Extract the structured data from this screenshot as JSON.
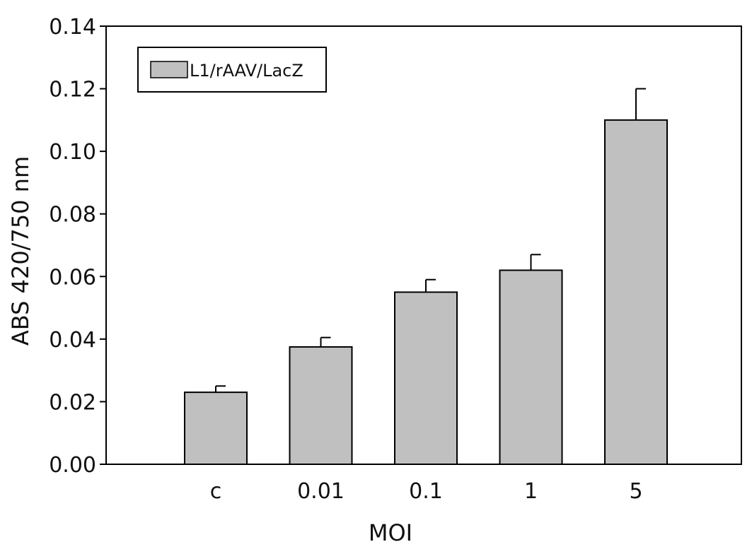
{
  "chart_data": {
    "type": "bar",
    "xlabel": "MOI",
    "ylabel": "ABS 420/750 nm",
    "ylim": [
      0,
      0.14
    ],
    "yticks": [
      "0.00",
      "0.02",
      "0.04",
      "0.06",
      "0.08",
      "0.10",
      "0.12",
      "0.14"
    ],
    "categories": [
      "c",
      "0.01",
      "0.1",
      "1",
      "5"
    ],
    "series": [
      {
        "name": "L1/rAAV/LacZ",
        "values": [
          0.023,
          0.0375,
          0.055,
          0.062,
          0.11
        ],
        "error_upper": [
          0.002,
          0.003,
          0.004,
          0.005,
          0.01
        ]
      }
    ],
    "bar_color": "#c0c0c0",
    "edge_color": "#000000",
    "grid": false,
    "legend_position": "top-left"
  }
}
